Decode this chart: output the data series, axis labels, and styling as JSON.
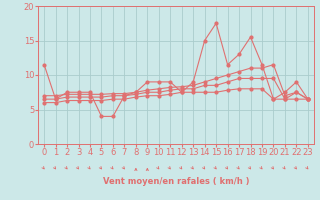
{
  "background_color": "#cce8e8",
  "grid_color": "#aacccc",
  "line_color": "#e07070",
  "xlabel": "Vent moyen/en rafales ( km/h )",
  "x": [
    0,
    1,
    2,
    3,
    4,
    5,
    6,
    7,
    8,
    9,
    10,
    11,
    12,
    13,
    14,
    15,
    16,
    17,
    18,
    19,
    20,
    21,
    22,
    23
  ],
  "y_main": [
    11.5,
    6.5,
    7.5,
    7.5,
    7.5,
    4.0,
    4.0,
    7.0,
    7.5,
    9.0,
    9.0,
    9.0,
    7.5,
    9.0,
    15.0,
    17.5,
    11.5,
    13.0,
    15.5,
    11.5,
    6.5,
    7.5,
    9.0,
    6.5
  ],
  "y_trend1": [
    7.0,
    7.0,
    7.2,
    7.2,
    7.2,
    7.2,
    7.3,
    7.3,
    7.5,
    7.8,
    8.0,
    8.2,
    8.3,
    8.5,
    9.0,
    9.5,
    10.0,
    10.5,
    11.0,
    11.0,
    11.5,
    7.0,
    7.5,
    6.5
  ],
  "y_trend2": [
    6.5,
    6.5,
    6.8,
    6.8,
    6.8,
    6.8,
    7.0,
    7.0,
    7.2,
    7.5,
    7.5,
    7.8,
    8.0,
    8.0,
    8.5,
    8.5,
    9.0,
    9.5,
    9.5,
    9.5,
    9.5,
    6.5,
    7.5,
    6.5
  ],
  "y_trend3": [
    6.0,
    6.0,
    6.3,
    6.3,
    6.3,
    6.3,
    6.5,
    6.5,
    6.8,
    7.0,
    7.0,
    7.2,
    7.5,
    7.5,
    7.5,
    7.5,
    7.8,
    8.0,
    8.0,
    8.0,
    6.5,
    6.5,
    6.5,
    6.5
  ],
  "ylim": [
    0,
    20
  ],
  "yticks": [
    0,
    5,
    10,
    15,
    20
  ],
  "tick_fontsize": 6,
  "xlabel_fontsize": 6,
  "xlabel_color": "#e07070",
  "xlabel_bold": true
}
